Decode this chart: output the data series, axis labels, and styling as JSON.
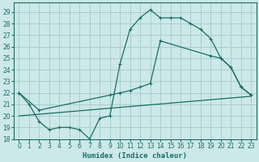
{
  "xlabel": "Humidex (Indice chaleur)",
  "bg_color": "#cce8e8",
  "grid_color": "#aacece",
  "line_color": "#1a6e64",
  "xlim": [
    -0.5,
    23.5
  ],
  "ylim": [
    18,
    29.8
  ],
  "xticks": [
    0,
    1,
    2,
    3,
    4,
    5,
    6,
    7,
    8,
    9,
    10,
    11,
    12,
    13,
    14,
    15,
    16,
    17,
    18,
    19,
    20,
    21,
    22,
    23
  ],
  "yticks": [
    18,
    19,
    20,
    21,
    22,
    23,
    24,
    25,
    26,
    27,
    28,
    29
  ],
  "series1_x": [
    0,
    1,
    2,
    3,
    4,
    5,
    6,
    7,
    8,
    9,
    10,
    11,
    12,
    13,
    14,
    15,
    16,
    17,
    18,
    19,
    20,
    21,
    22,
    23
  ],
  "series1_y": [
    22.0,
    21.0,
    19.5,
    18.8,
    19.0,
    19.0,
    18.8,
    18.0,
    19.8,
    20.0,
    24.5,
    27.5,
    28.5,
    29.2,
    28.5,
    28.5,
    28.5,
    28.0,
    27.5,
    26.7,
    25.0,
    24.2,
    22.5,
    21.8
  ],
  "series2_x": [
    0,
    2,
    9,
    10,
    11,
    12,
    13,
    14,
    19,
    20,
    21,
    22,
    23
  ],
  "series2_y": [
    22.0,
    20.5,
    21.8,
    22.0,
    22.2,
    22.5,
    22.8,
    26.5,
    25.2,
    25.0,
    24.2,
    22.5,
    21.8
  ],
  "series3_x": [
    0,
    23
  ],
  "series3_y": [
    20.0,
    21.7
  ]
}
